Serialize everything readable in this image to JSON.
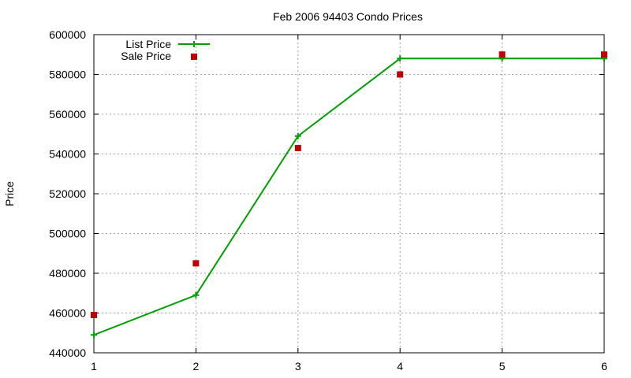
{
  "chart_data": {
    "type": "line",
    "title": "Feb 2006 94403 Condo Prices",
    "xlabel": "",
    "ylabel": "Price",
    "x": [
      1,
      2,
      3,
      4,
      5,
      6
    ],
    "xlim": [
      1,
      6
    ],
    "ylim": [
      440000,
      600000
    ],
    "xticks": [
      "1",
      "2",
      "3",
      "4",
      "5",
      "6"
    ],
    "yticks": [
      "440000",
      "460000",
      "480000",
      "500000",
      "520000",
      "540000",
      "560000",
      "580000",
      "600000"
    ],
    "grid": true,
    "legend_position": "top-left",
    "series": [
      {
        "name": "List Price",
        "style": "linespoints",
        "color": "#00a000",
        "values": [
          449000,
          469000,
          549000,
          588000,
          588000,
          588000
        ]
      },
      {
        "name": "Sale Price",
        "style": "points",
        "color": "#c00000",
        "values": [
          459000,
          485000,
          543000,
          580000,
          590000,
          590000
        ]
      }
    ]
  }
}
